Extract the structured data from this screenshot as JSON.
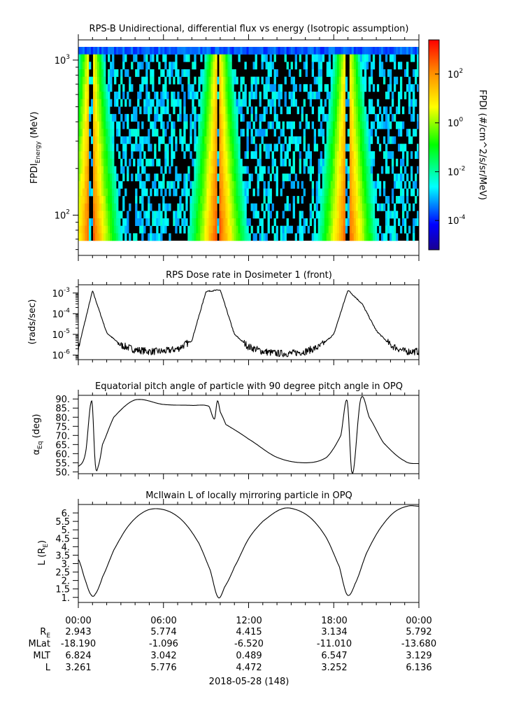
{
  "chart_data": [
    {
      "type": "heatmap",
      "title": "RPS-B  Unidirectional, differential flux vs energy (Isotropic assumption)",
      "ylabel_main": "FPDI",
      "ylabel_sub": "Energy",
      "ylabel_unit": " (MeV)",
      "yscale": "log",
      "ylim": [
        55,
        1350
      ],
      "yticks": [
        {
          "value": 100,
          "label": "10",
          "exp": "2"
        },
        {
          "value": 1000,
          "label": "10",
          "exp": "3"
        }
      ],
      "x_hours": [
        0,
        24
      ],
      "flux_peaks_hours": [
        0.9,
        9.85,
        18.95
      ],
      "colorbar": {
        "label": "FPDI (#/cm^2/s/sr/MeV)",
        "log_range": [
          -5.2,
          3.4
        ],
        "ticks": [
          {
            "label": "10",
            "exp": "2"
          },
          {
            "label": "10",
            "exp": "0"
          },
          {
            "label": "10",
            "exp": "-2"
          },
          {
            "label": "10",
            "exp": "-4"
          }
        ],
        "tick_values": [
          2,
          0,
          -2,
          -4
        ]
      }
    },
    {
      "type": "line",
      "title": "RPS  Dose rate in Dosimeter 1 (front)",
      "ylabel": "(rads/sec)",
      "yscale": "log",
      "ylim": [
        6e-07,
        0.0025
      ],
      "yticks": [
        {
          "value": 0.001,
          "label": "10",
          "exp": "-3"
        },
        {
          "value": 0.0001,
          "label": "10",
          "exp": "-4"
        },
        {
          "value": 1e-05,
          "label": "10",
          "exp": "-5"
        },
        {
          "value": 1e-06,
          "label": "10",
          "exp": "-6"
        }
      ],
      "x_hours": [
        0,
        1,
        2,
        3,
        4,
        5,
        6,
        7,
        8,
        9,
        10,
        11,
        12,
        13,
        14,
        15,
        16,
        17,
        18,
        19,
        20,
        21,
        22,
        23,
        24
      ],
      "values": [
        2e-06,
        0.0013,
        1.2e-05,
        3e-06,
        1.8e-06,
        1.5e-06,
        1.5e-06,
        2e-06,
        5e-06,
        0.0012,
        0.0014,
        1e-05,
        2.5e-06,
        1.5e-06,
        1.2e-06,
        1.2e-06,
        1.5e-06,
        2.5e-06,
        1e-05,
        0.0014,
        0.0003,
        1.5e-05,
        3e-06,
        1.5e-06,
        1.5e-06
      ]
    },
    {
      "type": "line",
      "title": "Equatorial pitch angle of particle with 90 degree pitch angle in OPQ",
      "ylabel_main": "α",
      "ylabel_sub": "Eq",
      "ylabel_unit": " (deg)",
      "ylim": [
        49,
        92
      ],
      "yticks": [
        50,
        55,
        60,
        65,
        70,
        75,
        80,
        85,
        90
      ],
      "ytick_labels": [
        "50.",
        "55.",
        "60.",
        "65.",
        "70.",
        "75.",
        "80.",
        "85.",
        "90."
      ],
      "x_hours": [
        0,
        0.5,
        0.95,
        1.2,
        1.4,
        1.7,
        2.5,
        4.0,
        6.0,
        8.0,
        9.2,
        9.6,
        9.8,
        10.0,
        10.4,
        12.0,
        14.0,
        16.0,
        17.5,
        18.5,
        18.95,
        19.3,
        19.9,
        20.5,
        21.5,
        23.0,
        24.0
      ],
      "values": [
        53.0,
        60.0,
        89.0,
        54.0,
        53.0,
        65.0,
        80.0,
        89.5,
        87.0,
        86.5,
        86.0,
        79.0,
        89.0,
        83.0,
        76.0,
        68.0,
        58.0,
        55.0,
        58.0,
        70.0,
        89.0,
        48.5,
        90.0,
        80.0,
        66.0,
        56.0,
        54.5
      ]
    },
    {
      "type": "line",
      "title": "McIlwain L of locally mirroring particle in OPQ",
      "ylabel_main": "L (R",
      "ylabel_sub": "E",
      "ylabel_unit": ")",
      "ylim": [
        0.7,
        6.5
      ],
      "yticks": [
        1,
        1.5,
        2,
        2.5,
        3,
        3.5,
        4,
        4.5,
        5,
        5.5,
        6
      ],
      "ytick_labels": [
        "1.",
        "1.5",
        "2.",
        "2.5",
        "3.",
        "3.5",
        "4.",
        "4.5",
        "5.",
        "5.5",
        "6."
      ],
      "x_hours": [
        0,
        0.5,
        0.9,
        1.2,
        1.7,
        2.5,
        3.5,
        4.5,
        5.4,
        6.5,
        7.5,
        8.5,
        9.3,
        9.85,
        10.3,
        11.0,
        12.0,
        13.0,
        14.4,
        15.5,
        16.5,
        17.5,
        18.4,
        18.95,
        19.5,
        20.3,
        21.2,
        22.2,
        23.2,
        24.0
      ],
      "values": [
        3.26,
        2.0,
        1.15,
        1.2,
        2.2,
        3.8,
        5.2,
        6.0,
        6.25,
        6.05,
        5.4,
        4.2,
        2.6,
        1.0,
        1.6,
        2.8,
        4.47,
        5.5,
        6.25,
        6.15,
        5.6,
        4.5,
        2.8,
        1.15,
        1.8,
        3.6,
        5.0,
        6.0,
        6.4,
        6.4
      ]
    }
  ],
  "x_axis": {
    "tick_labels": [
      "00:00",
      "06:00",
      "12:00",
      "18:00",
      "00:00"
    ],
    "row_labels": [
      {
        "main": "R",
        "sub": "E"
      },
      {
        "main": "MLat",
        "sub": ""
      },
      {
        "main": "MLT",
        "sub": ""
      },
      {
        "main": "L",
        "sub": ""
      }
    ],
    "rows": [
      [
        "2.943",
        "5.774",
        "4.415",
        "3.134",
        "5.792"
      ],
      [
        "-18.190",
        "-1.096",
        "-6.520",
        "-11.010",
        "-13.680"
      ],
      [
        "6.824",
        "3.042",
        "0.489",
        "6.547",
        "3.129"
      ],
      [
        "3.261",
        "5.776",
        "4.472",
        "3.252",
        "6.136"
      ]
    ],
    "date_label": "2018-05-28 (148)"
  }
}
